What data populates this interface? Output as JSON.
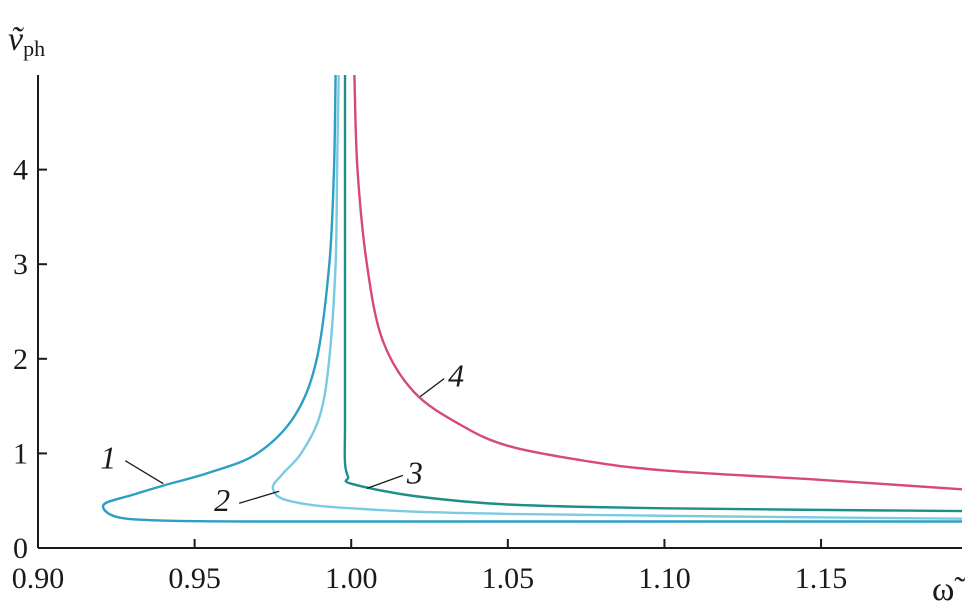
{
  "chart_data": {
    "type": "line",
    "xlabel": "ω̃",
    "ylabel": {
      "main": "ṽ",
      "sub": "ph"
    },
    "xlim": [
      0.9,
      1.195
    ],
    "ylim": [
      0,
      5
    ],
    "x_ticks": [
      "0.90",
      "0.95",
      "1.00",
      "1.05",
      "1.10",
      "1.15"
    ],
    "y_ticks": [
      "0",
      "1",
      "2",
      "3",
      "4"
    ],
    "grid": false,
    "series": [
      {
        "name": "1",
        "color": "#2b9fc4",
        "points": [
          [
            0.995,
            5.0
          ],
          [
            0.9945,
            4.0
          ],
          [
            0.993,
            3.0
          ],
          [
            0.989,
            2.0
          ],
          [
            0.982,
            1.4
          ],
          [
            0.97,
            1.0
          ],
          [
            0.955,
            0.8
          ],
          [
            0.94,
            0.66
          ],
          [
            0.93,
            0.56
          ],
          [
            0.921,
            0.46
          ],
          [
            0.925,
            0.33
          ],
          [
            0.94,
            0.29
          ],
          [
            0.97,
            0.28
          ],
          [
            1.05,
            0.28
          ],
          [
            1.195,
            0.28
          ]
        ]
      },
      {
        "name": "2",
        "color": "#7cc9e4",
        "points": [
          [
            0.996,
            5.0
          ],
          [
            0.9955,
            4.0
          ],
          [
            0.995,
            3.0
          ],
          [
            0.993,
            2.0
          ],
          [
            0.99,
            1.4
          ],
          [
            0.984,
            1.0
          ],
          [
            0.978,
            0.78
          ],
          [
            0.975,
            0.63
          ],
          [
            0.98,
            0.5
          ],
          [
            1.0,
            0.42
          ],
          [
            1.05,
            0.36
          ],
          [
            1.195,
            0.31
          ]
        ]
      },
      {
        "name": "3",
        "color": "#1d8f88",
        "points": [
          [
            0.998,
            5.0
          ],
          [
            0.998,
            4.0
          ],
          [
            0.998,
            3.0
          ],
          [
            0.998,
            2.0
          ],
          [
            0.998,
            1.3
          ],
          [
            0.998,
            0.9
          ],
          [
            0.999,
            0.75
          ],
          [
            1.0,
            0.68
          ],
          [
            1.02,
            0.55
          ],
          [
            1.05,
            0.46
          ],
          [
            1.1,
            0.42
          ],
          [
            1.195,
            0.39
          ]
        ]
      },
      {
        "name": "4",
        "color": "#d64a73",
        "points": [
          [
            1.001,
            5.0
          ],
          [
            1.002,
            4.0
          ],
          [
            1.005,
            3.0
          ],
          [
            1.01,
            2.2
          ],
          [
            1.02,
            1.65
          ],
          [
            1.035,
            1.3
          ],
          [
            1.05,
            1.08
          ],
          [
            1.075,
            0.92
          ],
          [
            1.1,
            0.82
          ],
          [
            1.15,
            0.72
          ],
          [
            1.195,
            0.62
          ]
        ]
      }
    ],
    "annotations": [
      {
        "text": "1",
        "target": [
          0.94,
          0.68
        ]
      },
      {
        "text": "2",
        "target": [
          0.977,
          0.6
        ]
      },
      {
        "text": "3",
        "target": [
          1.005,
          0.63
        ]
      },
      {
        "text": "4",
        "target": [
          1.022,
          1.6
        ]
      }
    ]
  }
}
